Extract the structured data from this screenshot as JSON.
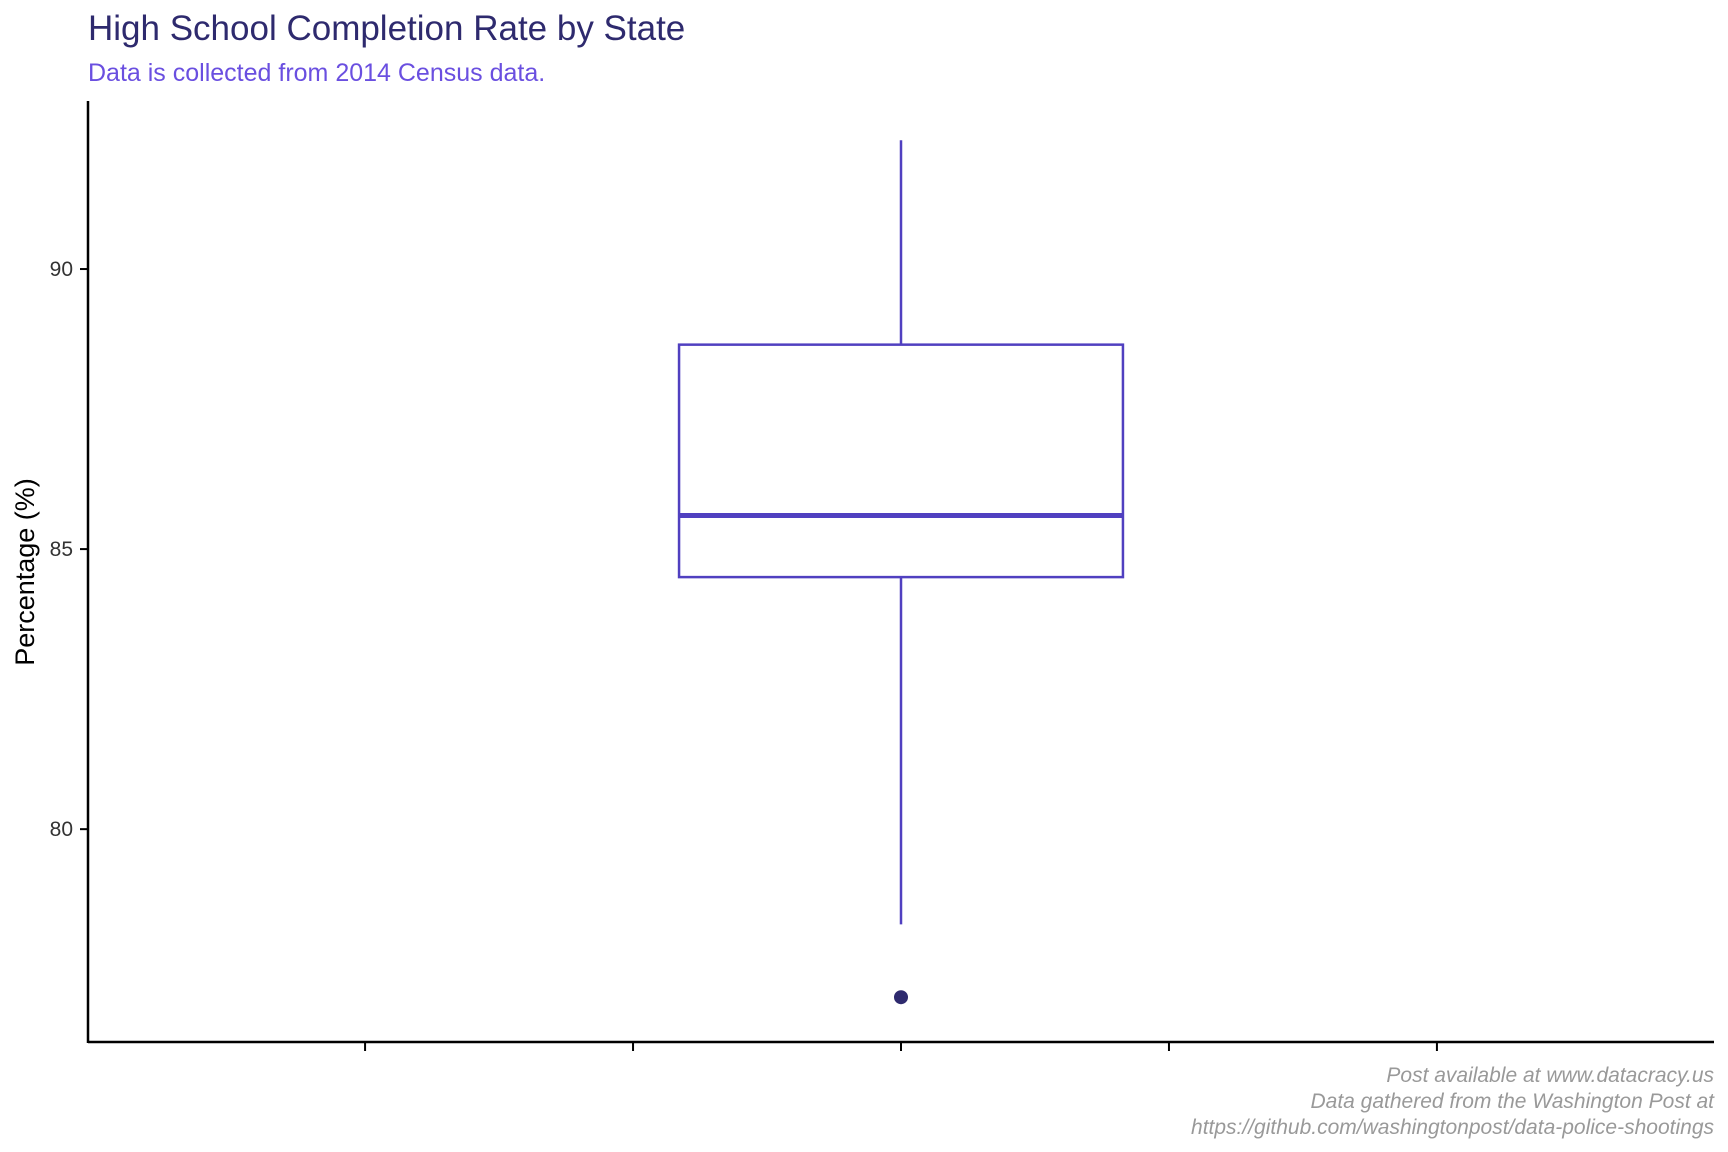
{
  "chart_data": {
    "type": "boxplot",
    "title": "High School Completion Rate by State",
    "subtitle": "Data is collected from 2014 Census data.",
    "xlabel": "",
    "ylabel": "Percentage (%)",
    "ylim": [
      76.2,
      93.0
    ],
    "yticks": [
      80,
      85,
      90
    ],
    "x_tick_count": 5,
    "box": {
      "whisker_low": 78.3,
      "q1": 84.5,
      "median": 85.6,
      "q3": 88.65,
      "whisker_high": 92.3
    },
    "outliers": [
      77.0
    ],
    "colors": {
      "box": "#5040c0",
      "outlier": "#2e2a6e",
      "title": "#2e2a6e",
      "subtitle": "#6a4fe0",
      "caption": "#999999"
    },
    "grid": false,
    "caption": [
      "Post available at www.datacracy.us",
      "Data gathered from the Washington Post at",
      "https://github.com/washingtonpost/data-police-shootings"
    ]
  }
}
